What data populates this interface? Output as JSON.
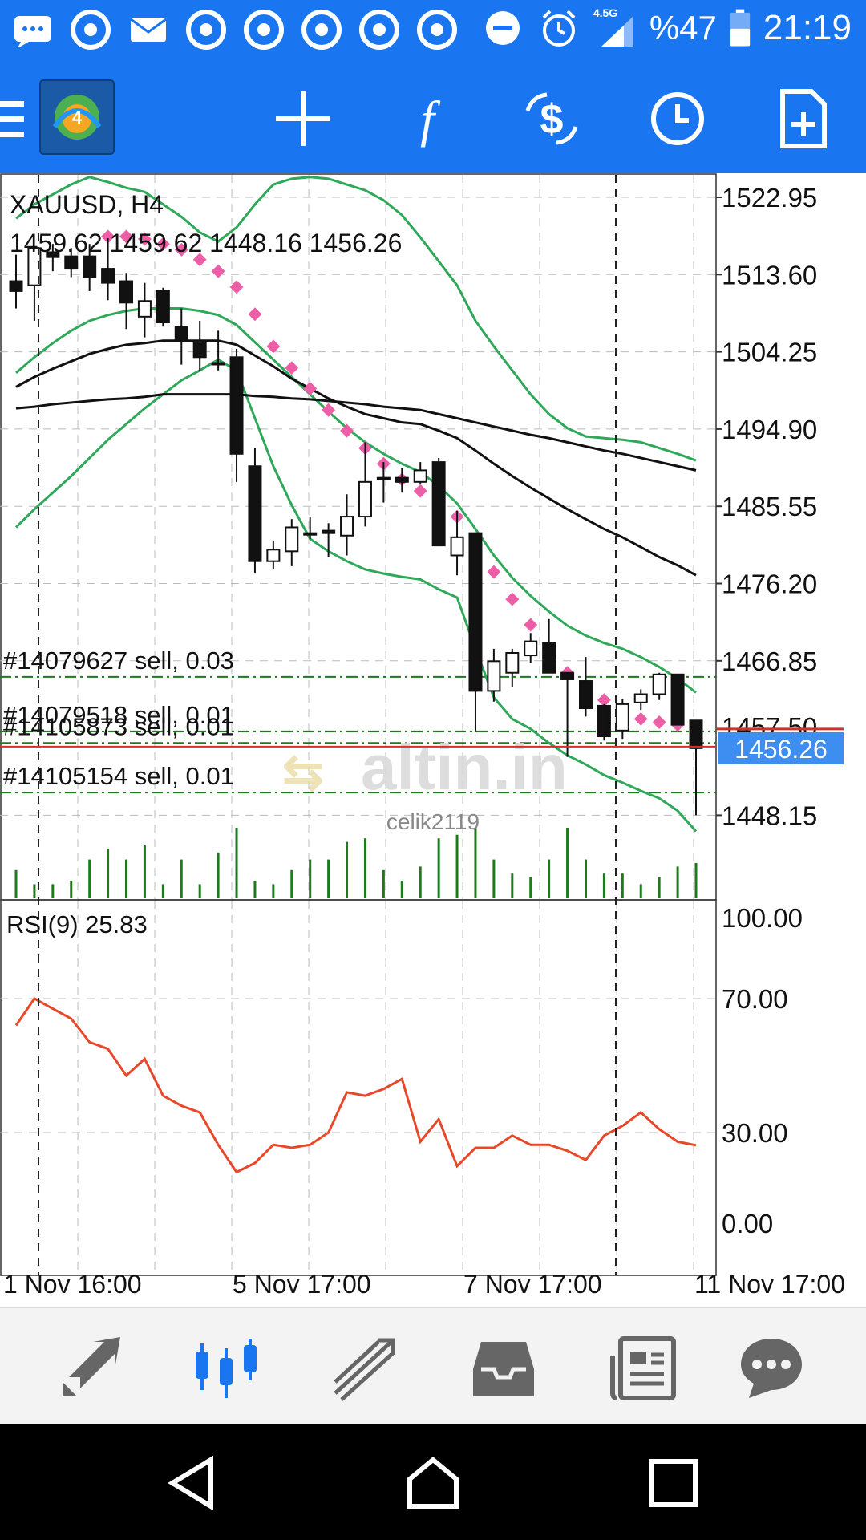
{
  "status_bar": {
    "network": "4.5G",
    "battery": "%47",
    "time": "21:19",
    "icons": [
      "message-icon",
      "chrome-icon",
      "mail-icon",
      "chrome-icon",
      "chrome-icon",
      "chrome-icon",
      "chrome-icon",
      "chrome-icon",
      "dnd-icon",
      "alarm-icon",
      "signal-icon",
      "battery-icon"
    ]
  },
  "toolbar": {
    "icons": [
      "menu-icon",
      "metatrader-logo",
      "crosshair-icon",
      "indicators-icon",
      "symbol-change-icon",
      "timeframe-icon",
      "new-order-icon"
    ]
  },
  "chart": {
    "symbol_timeframe": "XAUUSD, H4",
    "ohlc": "1459.62 1459.62 1448.16 1456.26",
    "price_ticks": [
      "1522.95",
      "1513.60",
      "1504.25",
      "1494.90",
      "1485.55",
      "1476.20",
      "1466.85",
      "1448.15"
    ],
    "current_price": "1456.26",
    "hidden_price": "1457.50",
    "orders": [
      {
        "label": "#14079627 sell, 0.03",
        "price": 1464.9
      },
      {
        "label": "#14079518 sell, 0.01",
        "price": 1458.3
      },
      {
        "label": "#14105873 sell, 0.01",
        "price": 1456.9
      },
      {
        "label": "#14105154 sell, 0.01",
        "price": 1450.9
      }
    ],
    "watermark": "altin.in",
    "watermark_user": "celik2119",
    "rsi_label": "RSI(9) 25.83",
    "rsi_ticks": [
      "100.00",
      "70.00",
      "30.00",
      "0.00"
    ],
    "time_labels": [
      "1 Nov 16:00",
      "5 Nov 17:00",
      "7 Nov 17:00",
      "11 Nov 17:00"
    ],
    "colors": {
      "bollinger": "#2fa85a",
      "sar": "#ec5fa6",
      "rsi": "#e8482a",
      "volume": "#1d7a1d",
      "order_line": "#1d7a1d",
      "price_tag": "#3d8ef0",
      "bid_line": "#d32f2f"
    }
  },
  "chart_data": {
    "type": "candlestick",
    "symbol": "XAUUSD",
    "timeframe": "H4",
    "candles": [
      {
        "o": 1512.8,
        "h": 1516.0,
        "l": 1509.5,
        "c": 1511.6
      },
      {
        "o": 1512.3,
        "h": 1517.0,
        "l": 1508.0,
        "c": 1516.8
      },
      {
        "o": 1516.3,
        "h": 1517.3,
        "l": 1514.0,
        "c": 1515.7
      },
      {
        "o": 1515.8,
        "h": 1516.8,
        "l": 1513.3,
        "c": 1514.3
      },
      {
        "o": 1515.8,
        "h": 1517.3,
        "l": 1511.6,
        "c": 1513.3
      },
      {
        "o": 1514.3,
        "h": 1518.0,
        "l": 1510.5,
        "c": 1512.6
      },
      {
        "o": 1512.8,
        "h": 1513.8,
        "l": 1507.0,
        "c": 1510.2
      },
      {
        "o": 1508.5,
        "h": 1512.6,
        "l": 1506.0,
        "c": 1510.4
      },
      {
        "o": 1511.6,
        "h": 1512.0,
        "l": 1507.3,
        "c": 1507.8
      },
      {
        "o": 1507.3,
        "h": 1509.5,
        "l": 1502.7,
        "c": 1505.6
      },
      {
        "o": 1505.3,
        "h": 1508.0,
        "l": 1502.0,
        "c": 1503.6
      },
      {
        "o": 1502.9,
        "h": 1506.8,
        "l": 1502.0,
        "c": 1502.9
      },
      {
        "o": 1503.6,
        "h": 1504.6,
        "l": 1488.5,
        "c": 1491.9
      },
      {
        "o": 1490.4,
        "h": 1492.6,
        "l": 1477.4,
        "c": 1478.9
      },
      {
        "o": 1478.9,
        "h": 1481.4,
        "l": 1477.9,
        "c": 1480.3
      },
      {
        "o": 1480.1,
        "h": 1484.0,
        "l": 1478.3,
        "c": 1483.0
      },
      {
        "o": 1482.3,
        "h": 1484.3,
        "l": 1481.6,
        "c": 1482.3
      },
      {
        "o": 1482.6,
        "h": 1483.5,
        "l": 1479.4,
        "c": 1482.3
      },
      {
        "o": 1482.0,
        "h": 1487.0,
        "l": 1479.6,
        "c": 1484.3
      },
      {
        "o": 1484.3,
        "h": 1493.3,
        "l": 1483.1,
        "c": 1488.5
      },
      {
        "o": 1489.0,
        "h": 1490.9,
        "l": 1486.0,
        "c": 1489.0
      },
      {
        "o": 1489.0,
        "h": 1490.2,
        "l": 1487.2,
        "c": 1488.5
      },
      {
        "o": 1488.5,
        "h": 1490.9,
        "l": 1488.3,
        "c": 1489.9
      },
      {
        "o": 1490.9,
        "h": 1491.4,
        "l": 1480.8,
        "c": 1480.8
      },
      {
        "o": 1479.6,
        "h": 1485.0,
        "l": 1477.2,
        "c": 1481.8
      },
      {
        "o": 1482.3,
        "h": 1482.3,
        "l": 1458.3,
        "c": 1463.2
      },
      {
        "o": 1463.2,
        "h": 1468.3,
        "l": 1461.9,
        "c": 1466.8
      },
      {
        "o": 1465.4,
        "h": 1468.3,
        "l": 1463.7,
        "c": 1467.8
      },
      {
        "o": 1467.5,
        "h": 1470.2,
        "l": 1466.6,
        "c": 1469.2
      },
      {
        "o": 1469.0,
        "h": 1471.9,
        "l": 1465.4,
        "c": 1465.4
      },
      {
        "o": 1465.4,
        "h": 1465.4,
        "l": 1455.2,
        "c": 1464.6
      },
      {
        "o": 1464.4,
        "h": 1467.3,
        "l": 1460.1,
        "c": 1461.1
      },
      {
        "o": 1461.4,
        "h": 1461.6,
        "l": 1457.2,
        "c": 1457.7
      },
      {
        "o": 1458.4,
        "h": 1462.2,
        "l": 1457.4,
        "c": 1461.6
      },
      {
        "o": 1461.8,
        "h": 1463.4,
        "l": 1460.9,
        "c": 1462.8
      },
      {
        "o": 1462.8,
        "h": 1465.4,
        "l": 1462.1,
        "c": 1465.2
      },
      {
        "o": 1465.2,
        "h": 1465.2,
        "l": 1459.1,
        "c": 1459.1
      },
      {
        "o": 1459.62,
        "h": 1459.62,
        "l": 1448.16,
        "c": 1456.26
      }
    ],
    "bb_upper": [
      1520.4,
      1522.1,
      1523.3,
      1524.5,
      1525.4,
      1524.8,
      1524.1,
      1523.6,
      1522.1,
      1520.6,
      1518.7,
      1517.6,
      1519.3,
      1522.1,
      1524.5,
      1525.2,
      1525.4,
      1525.2,
      1524.5,
      1523.8,
      1522.6,
      1520.8,
      1518.1,
      1515.2,
      1512.3,
      1508.0,
      1504.9,
      1502.0,
      1499.1,
      1496.7,
      1495.0,
      1494.0,
      1493.8,
      1493.6,
      1493.3,
      1492.6,
      1491.9,
      1491.1
    ],
    "bb_middle": [
      1501.7,
      1503.6,
      1505.3,
      1506.8,
      1508.0,
      1508.7,
      1509.2,
      1509.5,
      1509.5,
      1509.5,
      1509.2,
      1508.7,
      1507.5,
      1505.4,
      1503.3,
      1501.2,
      1499.1,
      1497.0,
      1495.0,
      1493.3,
      1491.9,
      1490.7,
      1489.7,
      1488.0,
      1485.9,
      1482.8,
      1479.6,
      1476.9,
      1474.7,
      1472.8,
      1471.1,
      1469.9,
      1469.0,
      1468.3,
      1467.3,
      1466.1,
      1464.7,
      1463.0
    ],
    "bb_lower": [
      1483.0,
      1485.2,
      1487.2,
      1489.2,
      1491.4,
      1493.6,
      1495.5,
      1497.4,
      1499.1,
      1500.8,
      1502.0,
      1503.3,
      1502.0,
      1496.2,
      1490.4,
      1485.7,
      1481.6,
      1480.1,
      1478.9,
      1477.9,
      1477.4,
      1477.0,
      1476.7,
      1475.5,
      1474.5,
      1468.3,
      1462.4,
      1459.8,
      1458.6,
      1456.9,
      1455.4,
      1454.3,
      1453.0,
      1452.1,
      1451.1,
      1450.2,
      1448.7,
      1446.2
    ],
    "ma_fast": [
      1500.0,
      1501.2,
      1502.2,
      1503.1,
      1504.0,
      1504.6,
      1505.1,
      1505.3,
      1505.6,
      1505.6,
      1505.6,
      1505.6,
      1505.1,
      1503.8,
      1502.5,
      1501.0,
      1499.8,
      1498.6,
      1497.6,
      1496.7,
      1496.2,
      1495.7,
      1495.5,
      1494.7,
      1493.8,
      1492.3,
      1490.7,
      1489.2,
      1487.8,
      1486.5,
      1485.2,
      1484.0,
      1482.8,
      1481.8,
      1480.6,
      1479.4,
      1478.4,
      1477.2
    ],
    "ma_slow": [
      1497.4,
      1497.6,
      1497.9,
      1498.1,
      1498.3,
      1498.5,
      1498.6,
      1498.8,
      1499.1,
      1499.1,
      1499.1,
      1499.1,
      1499.1,
      1498.9,
      1498.8,
      1498.6,
      1498.5,
      1498.3,
      1498.1,
      1497.9,
      1497.6,
      1497.4,
      1497.2,
      1496.7,
      1496.2,
      1495.7,
      1495.2,
      1494.7,
      1494.2,
      1493.8,
      1493.3,
      1492.8,
      1492.3,
      1491.9,
      1491.4,
      1490.9,
      1490.4,
      1489.9
    ],
    "sar": [
      null,
      null,
      null,
      null,
      null,
      1518.2,
      1518.2,
      1517.9,
      1517.3,
      1516.6,
      1515.4,
      1514.0,
      1512.1,
      1508.8,
      1504.9,
      1502.3,
      1499.8,
      1497.2,
      1494.7,
      1492.6,
      1490.7,
      1488.8,
      1487.4,
      1485.9,
      1484.3,
      1480.8,
      1477.6,
      1474.3,
      1471.2,
      1468.3,
      1465.4,
      1463.7,
      1462.1,
      1460.5,
      1459.8,
      1459.4,
      1459.1,
      1458.9
    ],
    "volume": [
      0.4,
      0.2,
      0.2,
      0.25,
      0.55,
      0.7,
      0.55,
      0.75,
      0.2,
      0.55,
      0.2,
      0.65,
      1.0,
      0.25,
      0.2,
      0.4,
      0.55,
      0.55,
      0.8,
      0.85,
      0.4,
      0.25,
      0.45,
      0.85,
      0.9,
      1.0,
      0.55,
      0.35,
      0.3,
      0.55,
      1.0,
      0.55,
      0.35,
      0.35,
      0.2,
      0.3,
      0.45,
      0.5
    ],
    "rsi": [
      62,
      70,
      67,
      64,
      57,
      55,
      47,
      52,
      41,
      38,
      36,
      26,
      17,
      20,
      26,
      25,
      26,
      30,
      42,
      41,
      43,
      46,
      27,
      34,
      19,
      25,
      25,
      29,
      26,
      26,
      24,
      21,
      29,
      32,
      36,
      31,
      27,
      25.83
    ],
    "price_axis": [
      1447.6,
      1525.4
    ],
    "rsi_axis": [
      0,
      100
    ]
  },
  "bottom_nav": {
    "items": [
      "quotes-icon",
      "chart-icon",
      "trade-icon",
      "history-icon",
      "news-icon",
      "chat-icon"
    ],
    "active": "chart-icon"
  }
}
